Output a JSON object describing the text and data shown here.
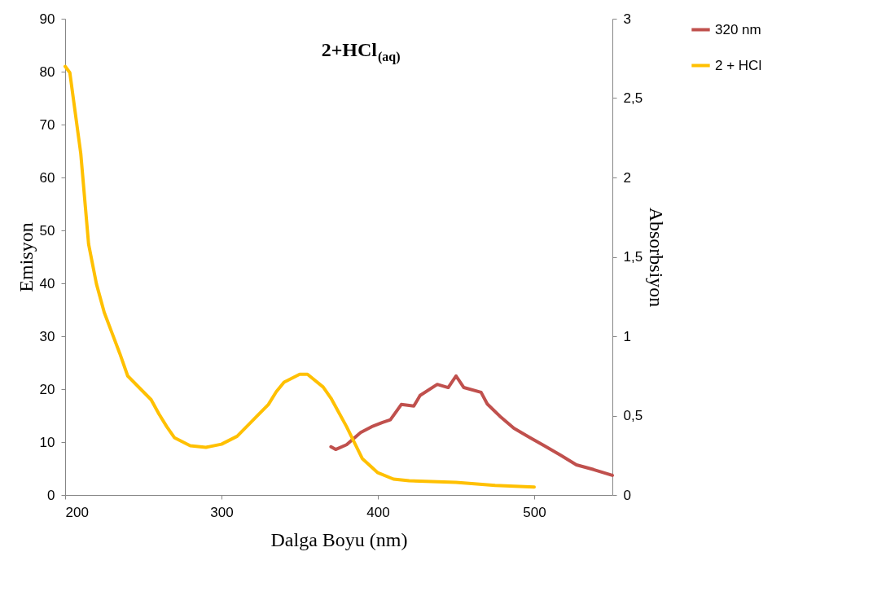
{
  "chart_data": {
    "type": "line",
    "title": "2+HCl$_{(aq)}$",
    "xlabel": "Dalga Boyu (nm)",
    "ylabel": "Emisyon",
    "y2label": "Absorbsiyon",
    "xlim": [
      200,
      550
    ],
    "xticks": [
      200,
      300,
      400,
      500
    ],
    "ylim": [
      0,
      90
    ],
    "yticks": [
      0,
      10,
      20,
      30,
      40,
      50,
      60,
      70,
      80,
      90
    ],
    "y2lim": [
      0,
      3
    ],
    "y2ticks": [
      0,
      {
        "value": 0.5,
        "label": "0,5"
      },
      1,
      {
        "value": 1.5,
        "label": "1,5"
      },
      2,
      {
        "value": 2.5,
        "label": "2,5"
      },
      3
    ],
    "grid": false,
    "legend": "top right",
    "marker": "none",
    "line_style": "solid",
    "series": [
      {
        "name": "320 nm",
        "color": "#c0504d",
        "x": [
          370,
          373,
          380,
          389,
          396,
          403,
          408,
          415,
          423,
          427,
          438,
          445,
          450,
          455,
          466,
          470,
          478,
          487,
          497,
          506,
          517,
          527,
          538,
          550
        ],
        "values": [
          9.1,
          8.6,
          9.5,
          11.8,
          12.9,
          13.7,
          14.2,
          17.1,
          16.8,
          18.8,
          20.9,
          20.3,
          22.5,
          20.3,
          19.4,
          17.2,
          14.9,
          12.6,
          10.9,
          9.4,
          7.5,
          5.7,
          4.8,
          3.7
        ]
      },
      {
        "name": "2 + HCl",
        "color": "#ffc000",
        "axis": "y2",
        "x": [
          200,
          203,
          210,
          215,
          220,
          225,
          230,
          235,
          240,
          250,
          255,
          260,
          265,
          270,
          280,
          290,
          300,
          310,
          320,
          330,
          335,
          340,
          350,
          355,
          365,
          370,
          380,
          385,
          390,
          400,
          410,
          420,
          450,
          475,
          500
        ],
        "values": [
          2.7,
          2.66,
          2.15,
          1.58,
          1.33,
          1.15,
          1.02,
          0.89,
          0.75,
          0.65,
          0.6,
          0.51,
          0.43,
          0.36,
          0.31,
          0.3,
          0.32,
          0.37,
          0.47,
          0.57,
          0.65,
          0.71,
          0.76,
          0.76,
          0.68,
          0.61,
          0.43,
          0.33,
          0.23,
          0.14,
          0.1,
          0.09,
          0.08,
          0.06,
          0.05
        ]
      }
    ]
  }
}
